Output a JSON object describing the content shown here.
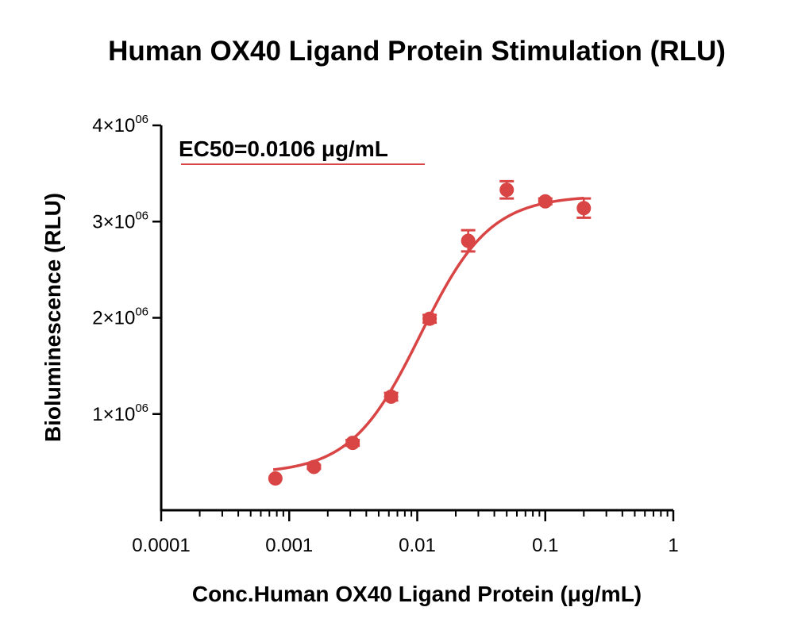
{
  "chart_data": {
    "type": "scatter",
    "title": "Human OX40 Ligand Protein Stimulation (RLU)",
    "xlabel": "Conc.Human OX40 Ligand Protein (μg/mL)",
    "ylabel": "Bioluminescence (RLU)",
    "x_scale": "log",
    "xlim": [
      0.0001,
      1
    ],
    "ylim": [
      0,
      4000000
    ],
    "x_ticks": [
      {
        "value": 0.0001,
        "label": "0.0001"
      },
      {
        "value": 0.001,
        "label": "0.001"
      },
      {
        "value": 0.01,
        "label": "0.01"
      },
      {
        "value": 0.1,
        "label": "0.1"
      },
      {
        "value": 1,
        "label": "1"
      }
    ],
    "y_ticks": [
      {
        "value": 1000000,
        "mantissa": "1",
        "times": "×",
        "base": "10",
        "exp": "06"
      },
      {
        "value": 2000000,
        "mantissa": "2",
        "times": "×",
        "base": "10",
        "exp": "06"
      },
      {
        "value": 3000000,
        "mantissa": "3",
        "times": "×",
        "base": "10",
        "exp": "06"
      },
      {
        "value": 4000000,
        "mantissa": "4",
        "times": "×",
        "base": "10",
        "exp": "06"
      }
    ],
    "annotation": "EC50=0.0106 μg/mL",
    "color": "#d94444",
    "series": [
      {
        "x": [
          0.00078,
          0.00156,
          0.00313,
          0.00625,
          0.0125,
          0.025,
          0.05,
          0.1,
          0.2
        ],
        "y": [
          330000,
          450000,
          700000,
          1180000,
          1990000,
          2800000,
          3330000,
          3210000,
          3140000
        ],
        "error": [
          0,
          20000,
          30000,
          40000,
          40000,
          110000,
          90000,
          30000,
          100000
        ]
      }
    ],
    "fit": {
      "model": "4PL",
      "bottom": 380000,
      "top": 3270000,
      "ec50": 0.0106,
      "hill": 1.6,
      "x_range": [
        0.00075,
        0.2
      ]
    },
    "grid": false,
    "legend": "none"
  }
}
